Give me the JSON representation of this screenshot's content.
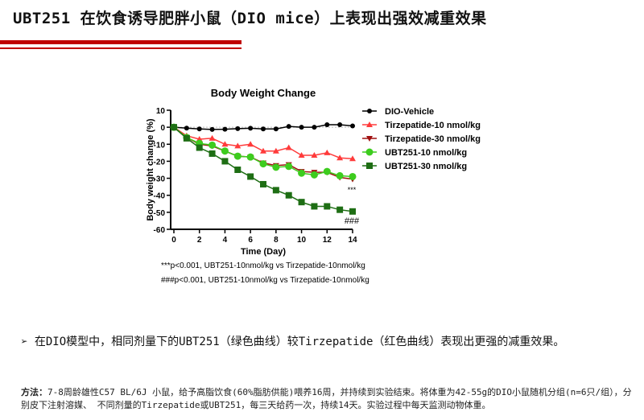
{
  "header": {
    "title": "UBT251 在饮食诱导肥胖小鼠（DIO mice）上表现出强效减重效果"
  },
  "chart_data": {
    "type": "line",
    "title": "Body Weight Change",
    "xlabel": "Time (Day)",
    "ylabel": "Body weight change (%)",
    "xlim": [
      0,
      14
    ],
    "ylim": [
      -60,
      10
    ],
    "xticks": [
      0,
      2,
      4,
      6,
      8,
      10,
      12,
      14
    ],
    "yticks": [
      10,
      0,
      -10,
      -20,
      -30,
      -40,
      -50,
      -60
    ],
    "legend_position": "right",
    "x": [
      0,
      1,
      2,
      3,
      4,
      5,
      6,
      7,
      8,
      9,
      10,
      11,
      12,
      13,
      14
    ],
    "series": [
      {
        "name": "DIO-Vehicle",
        "color": "#000000",
        "marker": "circle",
        "values": [
          0,
          -0.5,
          -1,
          -1.3,
          -1.2,
          -0.8,
          -0.6,
          -1,
          -1,
          0.5,
          0,
          0,
          1.5,
          1.5,
          0.8
        ]
      },
      {
        "name": "Tirzepatide-10 nmol/kg",
        "color": "#ff3b3b",
        "marker": "triangle-up",
        "values": [
          0,
          -5,
          -7,
          -6.5,
          -10,
          -11,
          -10,
          -14,
          -14,
          -12,
          -16.5,
          -16.5,
          -15,
          -18,
          -18.5
        ]
      },
      {
        "name": "Tirzepatide-30 nmol/kg",
        "color": "#a01010",
        "marker": "triangle-down",
        "values": [
          0,
          -6,
          -10,
          -11,
          -14,
          -17,
          -17.5,
          -21,
          -22.5,
          -22,
          -26,
          -26.5,
          -26.5,
          -29.5,
          -30.5
        ]
      },
      {
        "name": "UBT251-10 nmol/kg",
        "color": "#3dcc1e",
        "marker": "circle",
        "values": [
          0,
          -6,
          -9.5,
          -10.5,
          -14,
          -17,
          -17.5,
          -21.5,
          -23.5,
          -23,
          -27,
          -28,
          -26,
          -28.5,
          -29
        ]
      },
      {
        "name": "UBT251-30 nmol/kg",
        "color": "#1e6e14",
        "marker": "square",
        "values": [
          0,
          -6.5,
          -12,
          -15.5,
          -20,
          -25,
          -29,
          -33.5,
          -37,
          -40,
          -44,
          -46.5,
          -46.5,
          -48.5,
          -49.5
        ]
      }
    ],
    "annotations": [
      "***",
      "###"
    ],
    "footnotes": [
      "***p<0.001, UBT251-10nmol/kg vs Tirzepatide-10nmol/kg",
      "###p<0.001, UBT251-10nmol/kg vs Tirzepatide-10nmol/kg"
    ]
  },
  "bullet": "➢  在DIO模型中，相同剂量下的UBT251（绿色曲线）较Tirzepatide（红色曲线）表现出更强的减重效果。",
  "method": {
    "label": "方法：",
    "text": "7-8周龄雄性C57 BL/6J 小鼠，给予高脂饮食(60%脂肪供能)喂养16周，并持续到实验结束。将体重为42-55g的DIO小鼠随机分组(n=6只/组），分别皮下注射溶媒、 不同剂量的Tirzepatide或UBT251，每三天给药一次，持续14天。实验过程中每天监测动物体重。"
  }
}
